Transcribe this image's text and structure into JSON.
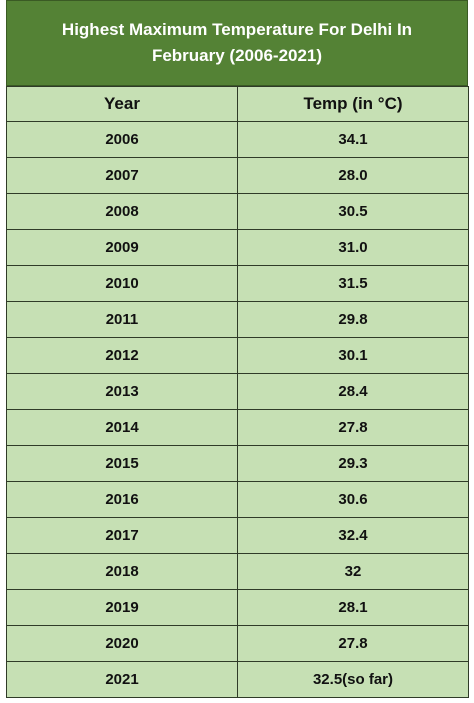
{
  "table": {
    "title": "Highest Maximum Temperature For Delhi In February (2006-2021)",
    "header": [
      "Year",
      "Temp (in °C)"
    ],
    "rows": [
      [
        "2006",
        "34.1"
      ],
      [
        "2007",
        "28.0"
      ],
      [
        "2008",
        "30.5"
      ],
      [
        "2009",
        "31.0"
      ],
      [
        "2010",
        "31.5"
      ],
      [
        "2011",
        "29.8"
      ],
      [
        "2012",
        "30.1"
      ],
      [
        "2013",
        "28.4"
      ],
      [
        "2014",
        "27.8"
      ],
      [
        "2015",
        "29.3"
      ],
      [
        "2016",
        "30.6"
      ],
      [
        "2017",
        "32.4"
      ],
      [
        "2018",
        "32"
      ],
      [
        "2019",
        "28.1"
      ],
      [
        "2020",
        "27.8"
      ],
      [
        "2021",
        "32.5(so far)"
      ]
    ]
  }
}
